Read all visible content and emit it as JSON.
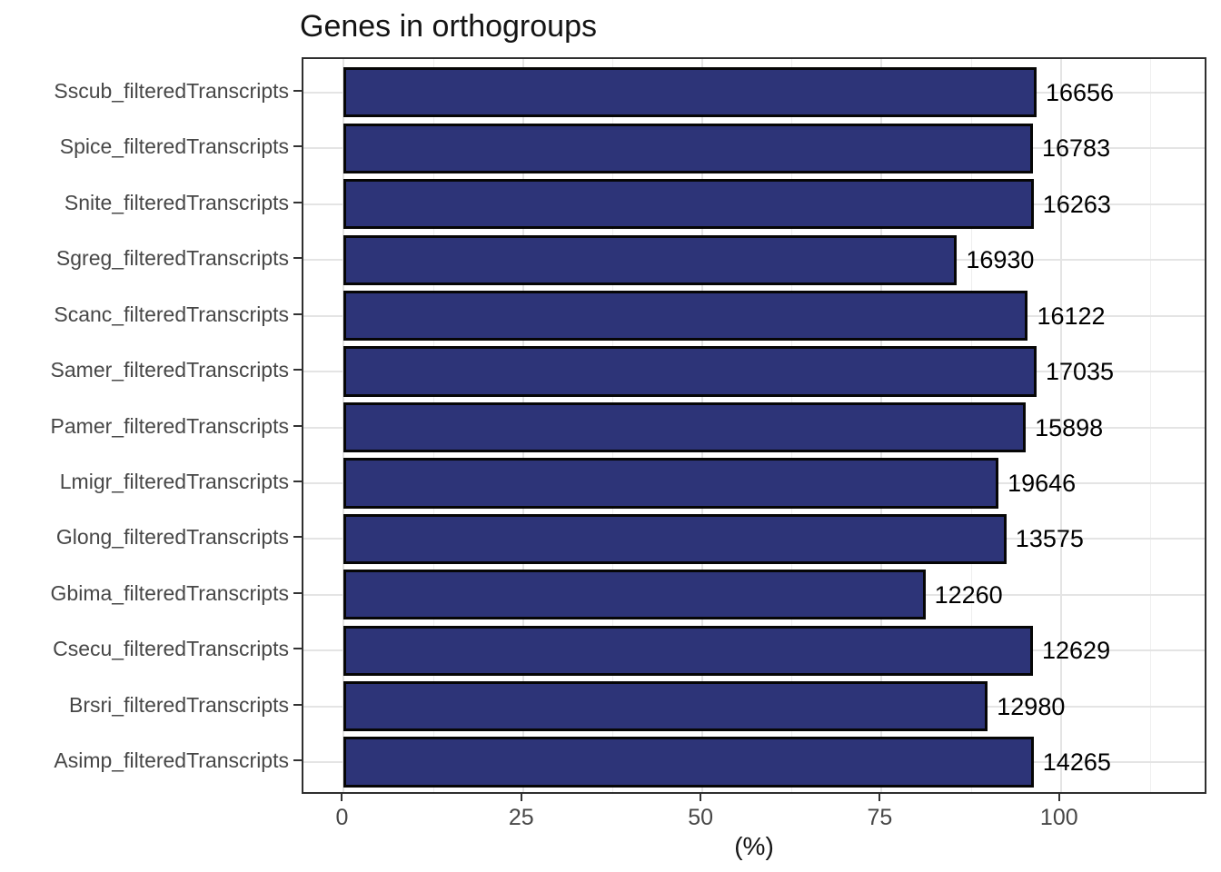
{
  "chart_data": {
    "type": "bar",
    "orientation": "horizontal",
    "title": "Genes in orthogroups",
    "xlabel": "(%)",
    "legend": "none",
    "grid": true,
    "x_ticks": [
      0,
      25,
      50,
      75,
      100
    ],
    "x_minor_ticks": [
      12.5,
      37.5,
      62.5,
      87.5,
      112.5
    ],
    "xlim": [
      -5.63,
      120.55
    ],
    "categories": [
      "Sscub_filteredTranscripts",
      "Spice_filteredTranscripts",
      "Snite_filteredTranscripts",
      "Sgreg_filteredTranscripts",
      "Scanc_filteredTranscripts",
      "Samer_filteredTranscripts",
      "Pamer_filteredTranscripts",
      "Lmigr_filteredTranscripts",
      "Glong_filteredTranscripts",
      "Gbima_filteredTranscripts",
      "Csecu_filteredTranscripts",
      "Brsri_filteredTranscripts",
      "Asimp_filteredTranscripts"
    ],
    "values_percent": [
      96.6,
      96.1,
      96.2,
      85.5,
      95.4,
      96.6,
      95.1,
      91.3,
      92.4,
      81.1,
      96.1,
      89.8,
      96.2
    ],
    "bar_labels": [
      "16656",
      "16783",
      "16263",
      "16930",
      "16122",
      "17035",
      "15898",
      "19646",
      "13575",
      "12260",
      "12629",
      "12980",
      "14265"
    ],
    "colors": {
      "bar_fill": "#2d3478",
      "bar_stroke": "#060606",
      "grid_major": "#e4e4e4",
      "grid_minor": "#efefef",
      "panel_border": "#2f2f2f",
      "axis_text": "#474747",
      "tick_mark": "#333333",
      "title_text": "#141414",
      "value_text": "#000000",
      "background": "#ffffff"
    }
  }
}
